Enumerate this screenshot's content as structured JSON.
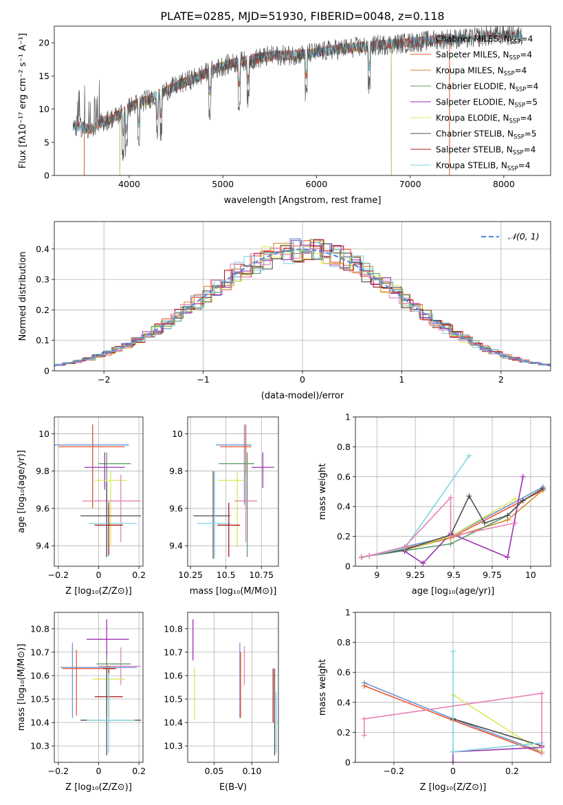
{
  "title": "PLATE=0285, MJD=51930, FIBERID=0048, z=0.118",
  "colors": {
    "Chabrier MILES": "#6a94d4",
    "Salpeter MILES": "#f0562a",
    "Kroupa MILES": "#d3892e",
    "Chabrier ELODIE": "#5e9b6a",
    "Salpeter ELODIE": "#9b30b0",
    "Kroupa ELODIE": "#d9e85a",
    "Chabrier STELIB": "#4d4d4d",
    "Salpeter STELIB": "#a81818",
    "Kroupa STELIB": "#7fd3e0",
    "extra": "#e880b4"
  },
  "chart_data": [
    {
      "id": "spectrum",
      "type": "line",
      "xlabel": "wavelength [Angstrom, rest frame]",
      "ylabel": "Flux [fλ10⁻¹⁷ erg cm⁻² s⁻¹ A⁻¹]",
      "xlim": [
        3200,
        8500
      ],
      "ylim": [
        0,
        22.5
      ],
      "xticks": [
        4000,
        5000,
        6000,
        7000,
        8000
      ],
      "yticks": [
        0,
        5,
        10,
        15,
        20
      ],
      "legend_position": "right",
      "legend": [
        {
          "name": "Chabrier MILES",
          "nssp": "4"
        },
        {
          "name": "Salpeter MILES",
          "nssp": "4"
        },
        {
          "name": "Kroupa MILES",
          "nssp": "4"
        },
        {
          "name": "Chabrier ELODIE",
          "nssp": "4"
        },
        {
          "name": "Salpeter ELODIE",
          "nssp": "5"
        },
        {
          "name": "Kroupa ELODIE",
          "nssp": "4"
        },
        {
          "name": "Chabrier STELIB",
          "nssp": "5"
        },
        {
          "name": "Salpeter STELIB",
          "nssp": "4"
        },
        {
          "name": "Kroupa STELIB",
          "nssp": "4"
        }
      ],
      "data_trend": {
        "x": [
          3400,
          3500,
          3600,
          3700,
          3800,
          3900,
          4000,
          4200,
          4500,
          4800,
          5000,
          5200,
          5500,
          5800,
          6000,
          6200,
          6500,
          6800,
          7000,
          7200,
          7400,
          7600,
          7800,
          8000,
          8200
        ],
        "y": [
          7.5,
          7.3,
          6.8,
          8.0,
          8.5,
          9.2,
          10.3,
          11.5,
          13.5,
          15.3,
          16.5,
          17.2,
          18.0,
          18.2,
          18.5,
          19.0,
          19.4,
          19.8,
          20.0,
          20.3,
          20.6,
          20.6,
          21.0,
          21.2,
          21.0
        ]
      },
      "model_ranges": {
        "Chabrier MILES": [
          3520,
          7420
        ],
        "Salpeter MILES": [
          3520,
          7420
        ],
        "Kroupa MILES": [
          3520,
          7420
        ],
        "Chabrier ELODIE": [
          3900,
          6800
        ],
        "Salpeter ELODIE": [
          3900,
          6800
        ],
        "Kroupa ELODIE": [
          3900,
          6800
        ],
        "Chabrier STELIB": [
          3400,
          8200
        ],
        "Salpeter STELIB": [
          3400,
          8200
        ],
        "Kroupa STELIB": [
          3400,
          8200
        ]
      }
    },
    {
      "id": "residuals",
      "type": "line",
      "xlabel": "(data-model)/error",
      "ylabel": "Normed distribution",
      "xlim": [
        -2.5,
        2.5
      ],
      "ylim": [
        0,
        0.49
      ],
      "xticks": [
        -2,
        -1,
        0,
        1,
        2
      ],
      "yticks": [
        0.0,
        0.1,
        0.2,
        0.3,
        0.4
      ],
      "grid": true,
      "legend_position": "top-right",
      "legend_label": "𝒩(0, 1)"
    },
    {
      "id": "z-age",
      "type": "scatter",
      "xlabel": "Z [log₁₀(Z/Z⊙)]",
      "ylabel": "age  [log₁₀(age/yr)]",
      "xlim": [
        -0.22,
        0.22
      ],
      "ylim": [
        9.29,
        10.09
      ],
      "xticks": [
        -0.2,
        0.0,
        0.2
      ],
      "yticks": [
        9.4,
        9.6,
        9.8,
        10.0
      ],
      "grid": true,
      "points": [
        {
          "model": "Chabrier MILES",
          "x": -0.03,
          "y": 9.94,
          "x_err_lo": 0.19,
          "x_err_hi": 0.18,
          "y_err_lo": 0.32,
          "y_err_hi": 0.11
        },
        {
          "model": "Salpeter MILES",
          "x": -0.03,
          "y": 9.93,
          "x_err_lo": 0.17,
          "x_err_hi": 0.16,
          "y_err_lo": 0.33,
          "y_err_hi": 0.12
        },
        {
          "model": "Chabrier ELODIE",
          "x": 0.04,
          "y": 9.84,
          "x_err_lo": 0.04,
          "x_err_hi": 0.12,
          "y_err_lo": 0.5,
          "y_err_hi": 0.06
        },
        {
          "model": "Salpeter ELODIE",
          "x": 0.03,
          "y": 9.82,
          "x_err_lo": 0.1,
          "x_err_hi": 0.1,
          "y_err_lo": 0.12,
          "y_err_hi": 0.08
        },
        {
          "model": "Kroupa ELODIE",
          "x": 0.06,
          "y": 9.75,
          "x_err_lo": 0.08,
          "x_err_hi": 0.08,
          "y_err_lo": 0.35,
          "y_err_hi": 0.05
        },
        {
          "model": "extra",
          "x": 0.11,
          "y": 9.64,
          "x_err_lo": 0.19,
          "x_err_hi": 0.1,
          "y_err_lo": 0.22,
          "y_err_hi": 0.14
        },
        {
          "model": "Chabrier STELIB",
          "x": 0.04,
          "y": 9.56,
          "x_err_lo": 0.13,
          "x_err_hi": 0.17,
          "y_err_lo": 0.22,
          "y_err_hi": 0.18
        },
        {
          "model": "Kroupa STELIB",
          "x": 0.05,
          "y": 9.52,
          "x_err_lo": 0.1,
          "x_err_hi": 0.14,
          "y_err_lo": 0.18,
          "y_err_hi": 0.12
        },
        {
          "model": "Salpeter STELIB",
          "x": 0.05,
          "y": 9.51,
          "x_err_lo": 0.07,
          "x_err_hi": 0.07,
          "y_err_lo": 0.16,
          "y_err_hi": 0.12
        }
      ]
    },
    {
      "id": "mass-age",
      "type": "scatter",
      "xlabel": "mass [log₁₀(M/M⊙)]",
      "ylabel": "",
      "xlim": [
        10.23,
        10.87
      ],
      "ylim": [
        9.29,
        10.09
      ],
      "xticks": [
        10.25,
        10.5,
        10.75
      ],
      "yticks": [
        9.4,
        9.6,
        9.8,
        10.0
      ],
      "grid": true,
      "points": [
        {
          "model": "Chabrier MILES",
          "x": 10.63,
          "y": 9.94,
          "x_err_lo": 0.2,
          "x_err_hi": 0.05,
          "y_err_lo": 0.32,
          "y_err_hi": 0.11
        },
        {
          "model": "Salpeter MILES",
          "x": 10.64,
          "y": 9.93,
          "x_err_lo": 0.18,
          "x_err_hi": 0.04,
          "y_err_lo": 0.33,
          "y_err_hi": 0.12
        },
        {
          "model": "Chabrier ELODIE",
          "x": 10.65,
          "y": 9.84,
          "x_err_lo": 0.2,
          "x_err_hi": 0.05,
          "y_err_lo": 0.5,
          "y_err_hi": 0.06
        },
        {
          "model": "Salpeter ELODIE",
          "x": 10.76,
          "y": 9.82,
          "x_err_lo": 0.08,
          "x_err_hi": 0.08,
          "y_err_lo": 0.11,
          "y_err_hi": 0.08
        },
        {
          "model": "Kroupa ELODIE",
          "x": 10.58,
          "y": 9.75,
          "x_err_lo": 0.14,
          "x_err_hi": 0.05,
          "y_err_lo": 0.36,
          "y_err_hi": 0.05
        },
        {
          "model": "extra",
          "x": 10.64,
          "y": 9.64,
          "x_err_lo": 0.08,
          "x_err_hi": 0.08,
          "y_err_lo": 0.22,
          "y_err_hi": 0.14
        },
        {
          "model": "Chabrier STELIB",
          "x": 10.41,
          "y": 9.56,
          "x_err_lo": 0.14,
          "x_err_hi": 0.12,
          "y_err_lo": 0.23,
          "y_err_hi": 0.24
        },
        {
          "model": "Kroupa STELIB",
          "x": 10.42,
          "y": 9.52,
          "x_err_lo": 0.12,
          "x_err_hi": 0.11,
          "y_err_lo": 0.19,
          "y_err_hi": 0.28
        },
        {
          "model": "Salpeter STELIB",
          "x": 10.52,
          "y": 9.51,
          "x_err_lo": 0.08,
          "x_err_hi": 0.08,
          "y_err_lo": 0.17,
          "y_err_hi": 0.12
        }
      ]
    },
    {
      "id": "age-weight",
      "type": "line",
      "xlabel": "age  [log₁₀(age/yr)]",
      "ylabel": "mass weight",
      "xlim": [
        8.86,
        10.13
      ],
      "ylim": [
        0,
        1.0
      ],
      "xticks": [
        9.0,
        9.25,
        9.5,
        9.75,
        10.0
      ],
      "yticks": [
        0.0,
        0.2,
        0.4,
        0.6,
        0.8,
        1.0
      ],
      "grid": true,
      "series": [
        {
          "model": "Chabrier MILES",
          "x": [
            8.9,
            8.95,
            9.18,
            9.48,
            10.08
          ],
          "y": [
            0.06,
            0.07,
            0.13,
            0.2,
            0.53
          ]
        },
        {
          "model": "Salpeter MILES",
          "x": [
            8.9,
            8.95,
            9.18,
            9.48,
            10.08
          ],
          "y": [
            0.06,
            0.07,
            0.12,
            0.19,
            0.51
          ]
        },
        {
          "model": "Kroupa MILES",
          "x": [
            8.9,
            8.95,
            9.18,
            9.48,
            9.85,
            10.08
          ],
          "y": [
            0.06,
            0.07,
            0.11,
            0.19,
            0.31,
            0.51
          ]
        },
        {
          "model": "Chabrier ELODIE",
          "x": [
            8.9,
            8.95,
            9.48,
            9.85,
            9.95
          ],
          "y": [
            0.06,
            0.07,
            0.15,
            0.34,
            0.44
          ]
        },
        {
          "model": "Salpeter ELODIE",
          "x": [
            9.18,
            9.3,
            9.48,
            9.85,
            9.95
          ],
          "y": [
            0.1,
            0.02,
            0.22,
            0.06,
            0.6
          ]
        },
        {
          "model": "Kroupa ELODIE",
          "x": [
            8.9,
            8.95,
            9.18,
            9.48,
            9.9
          ],
          "y": [
            0.06,
            0.07,
            0.11,
            0.2,
            0.45
          ]
        },
        {
          "model": "Chabrier STELIB",
          "x": [
            8.9,
            8.95,
            9.18,
            9.48,
            9.6,
            9.7,
            9.85,
            9.95,
            10.08
          ],
          "y": [
            0.06,
            0.07,
            0.11,
            0.21,
            0.47,
            0.29,
            0.34,
            0.44,
            0.52
          ]
        },
        {
          "model": "Kroupa STELIB",
          "x": [
            8.9,
            8.95,
            9.18,
            9.6
          ],
          "y": [
            0.06,
            0.07,
            0.12,
            0.74
          ]
        },
        {
          "model": "extra",
          "x": [
            8.9,
            8.95,
            9.18,
            9.48,
            9.48,
            9.9
          ],
          "y": [
            0.06,
            0.07,
            0.13,
            0.46,
            0.2,
            0.29
          ]
        }
      ]
    },
    {
      "id": "z-mass",
      "type": "scatter",
      "xlabel": "Z [log₁₀(Z/Z⊙)]",
      "ylabel": "mass [log₁₀(M/M⊙)]",
      "xlim": [
        -0.22,
        0.22
      ],
      "ylim": [
        10.23,
        10.87
      ],
      "xticks": [
        -0.2,
        0.0,
        0.2
      ],
      "yticks": [
        10.3,
        10.4,
        10.5,
        10.6,
        10.7,
        10.8
      ],
      "grid": true,
      "points": [
        {
          "model": "Chabrier MILES",
          "x": -0.13,
          "y": 10.635,
          "x_err_lo": 0.06,
          "x_err_hi": 0.32,
          "y_err_lo": 0.215,
          "y_err_hi": 0.105
        },
        {
          "model": "Salpeter MILES",
          "x": -0.11,
          "y": 10.63,
          "x_err_lo": 0.07,
          "x_err_hi": 0.2,
          "y_err_lo": 0.2,
          "y_err_hi": 0.08
        },
        {
          "model": "Salpeter ELODIE",
          "x": 0.04,
          "y": 10.755,
          "x_err_lo": 0.1,
          "x_err_hi": 0.11,
          "y_err_lo": 0.085,
          "y_err_hi": 0.085
        },
        {
          "model": "extra",
          "x": 0.11,
          "y": 10.64,
          "x_err_lo": 0.11,
          "x_err_hi": 0.1,
          "y_err_lo": 0.08,
          "y_err_hi": 0.08
        },
        {
          "model": "Chabrier ELODIE",
          "x": 0.04,
          "y": 10.65,
          "x_err_lo": 0.05,
          "x_err_hi": 0.12,
          "y_err_lo": 0.22,
          "y_err_hi": 0.04
        },
        {
          "model": "Salpeter STELIB",
          "x": 0.05,
          "y": 10.63,
          "x_err_lo": 0.03,
          "x_err_hi": 0.03,
          "y_err_lo": 0.1,
          "y_err_hi": 0.01
        },
        {
          "model": "Kroupa ELODIE",
          "x": 0.05,
          "y": 10.585,
          "x_err_lo": 0.08,
          "x_err_hi": 0.08,
          "y_err_lo": 0.16,
          "y_err_hi": 0.05
        },
        {
          "model": "Salpeter STELIB",
          "x": 0.05,
          "y": 10.51,
          "x_err_lo": 0.07,
          "x_err_hi": 0.07,
          "y_err_lo": 0.09,
          "y_err_hi": 0.12
        },
        {
          "model": "Chabrier STELIB",
          "x": 0.04,
          "y": 10.41,
          "x_err_lo": 0.13,
          "x_err_hi": 0.17,
          "y_err_lo": 0.15,
          "y_err_hi": 0.22
        },
        {
          "model": "Kroupa STELIB",
          "x": 0.05,
          "y": 10.41,
          "x_err_lo": 0.11,
          "x_err_hi": 0.13,
          "y_err_lo": 0.14,
          "y_err_hi": 0.2
        }
      ]
    },
    {
      "id": "ebv-mass",
      "type": "scatter",
      "xlabel": "E(B-V)",
      "ylabel": "",
      "xlim": [
        0.015,
        0.135
      ],
      "ylim": [
        10.23,
        10.87
      ],
      "xticks": [
        0.05,
        0.1
      ],
      "xtick_labels": [
        "0.05",
        "0.10"
      ],
      "yticks": [
        10.3,
        10.4,
        10.5,
        10.6,
        10.7,
        10.8
      ],
      "grid": true,
      "points": [
        {
          "model": "Salpeter ELODIE",
          "x": 0.022,
          "y": 10.755,
          "y_err_lo": 0.09,
          "y_err_hi": 0.085
        },
        {
          "model": "Kroupa ELODIE",
          "x": 0.024,
          "y": 10.525,
          "y_err_lo": 0.115,
          "y_err_hi": 0.11
        },
        {
          "model": "Chabrier MILES",
          "x": 0.084,
          "y": 10.635,
          "y_err_lo": 0.215,
          "y_err_hi": 0.105
        },
        {
          "model": "Salpeter MILES",
          "x": 0.085,
          "y": 10.62,
          "y_err_lo": 0.2,
          "y_err_hi": 0.08
        },
        {
          "model": "extra",
          "x": 0.09,
          "y": 10.64,
          "y_err_lo": 0.08,
          "y_err_hi": 0.085
        },
        {
          "model": "Salpeter STELIB",
          "x": 0.128,
          "y": 10.52,
          "y_err_lo": 0.12,
          "y_err_hi": 0.11
        },
        {
          "model": "Chabrier STELIB",
          "x": 0.13,
          "y": 10.41,
          "y_err_lo": 0.15,
          "y_err_hi": 0.22
        },
        {
          "model": "Kroupa STELIB",
          "x": 0.132,
          "y": 10.41,
          "y_err_lo": 0.14,
          "y_err_hi": 0.12
        }
      ]
    },
    {
      "id": "z-weight",
      "type": "line",
      "xlabel": "Z [log₁₀(Z/Z⊙)]",
      "ylabel": "mass weight",
      "xlim": [
        -0.33,
        0.33
      ],
      "ylim": [
        0,
        1.0
      ],
      "xticks": [
        -0.2,
        0.0,
        0.2
      ],
      "yticks": [
        0.0,
        0.2,
        0.4,
        0.6,
        0.8,
        1.0
      ],
      "grid": true,
      "series": [
        {
          "model": "Chabrier MILES",
          "x": [
            -0.3,
            0.0,
            0.3
          ],
          "y": [
            0.53,
            0.29,
            0.07
          ]
        },
        {
          "model": "Salpeter MILES",
          "x": [
            -0.3,
            0.0,
            0.3
          ],
          "y": [
            0.51,
            0.28,
            0.06
          ]
        },
        {
          "model": "Kroupa ELODIE",
          "x": [
            0.0,
            0.3
          ],
          "y": [
            0.45,
            0.07
          ]
        },
        {
          "model": "Chabrier STELIB",
          "x": [
            0.0,
            0.3
          ],
          "y": [
            0.29,
            0.11
          ]
        },
        {
          "model": "Salpeter ELODIE",
          "x": [
            0.0,
            0.0,
            0.3
          ],
          "y": [
            0.0,
            0.07,
            0.1
          ]
        },
        {
          "model": "Kroupa STELIB",
          "x": [
            0.0,
            0.0,
            0.3
          ],
          "y": [
            0.74,
            0.07,
            0.13
          ]
        },
        {
          "model": "extra",
          "x": [
            -0.3,
            -0.3,
            0.3,
            0.3
          ],
          "y": [
            0.18,
            0.29,
            0.46,
            0.06
          ]
        }
      ]
    }
  ]
}
